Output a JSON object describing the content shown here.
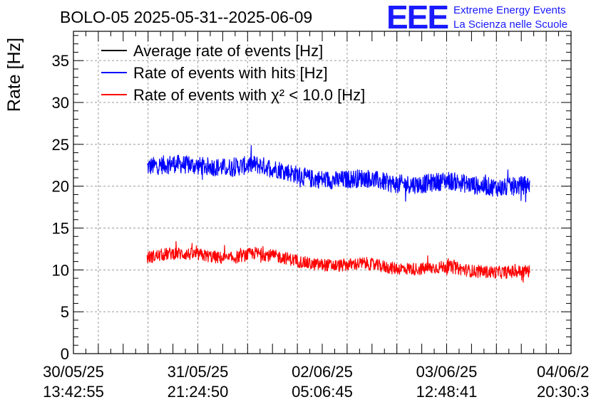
{
  "title": "BOLO-05 2025-05-31--2025-06-09",
  "logo": {
    "mark": "EEE",
    "line1": "Extreme Energy Events",
    "line2": "La Scienza nelle Scuole",
    "color": "#1a1aff"
  },
  "chart_data": {
    "type": "line",
    "ylabel": "Rate [Hz]",
    "ylim": [
      0,
      38.5
    ],
    "yticks": [
      0,
      5,
      10,
      15,
      20,
      25,
      30,
      35
    ],
    "xticks": [
      {
        "date": "30/05/25",
        "time": "13:42:55"
      },
      {
        "date": "31/05/25",
        "time": "21:24:50"
      },
      {
        "date": "02/06/25",
        "time": "05:06:45"
      },
      {
        "date": "03/06/25",
        "time": "12:48:41"
      },
      {
        "date": "04/06/2",
        "time": "20:30:3"
      }
    ],
    "grid": true,
    "legend_position": "top-left",
    "series": [
      {
        "name": "Average rate of events [Hz]",
        "color": "#000000",
        "values": []
      },
      {
        "name": "Rate of events with hits [Hz]",
        "color": "#0000ff",
        "x": [
          "2025-05-31T08:30",
          "2025-05-31T15:00",
          "2025-05-31T22:00",
          "2025-06-01T05:00",
          "2025-06-01T12:00",
          "2025-06-01T19:00",
          "2025-06-02T02:00",
          "2025-06-02T09:00",
          "2025-06-02T16:00",
          "2025-06-02T23:00",
          "2025-06-03T06:00",
          "2025-06-03T13:00",
          "2025-06-03T20:00",
          "2025-06-04T03:00",
          "2025-06-04T10:00"
        ],
        "values": [
          22.3,
          22.7,
          22.4,
          22.2,
          22.6,
          21.9,
          20.9,
          20.7,
          21.0,
          20.3,
          20.2,
          20.7,
          20.1,
          19.8,
          20.2
        ]
      },
      {
        "name": "Rate of events with χ² < 10.0 [Hz]",
        "color": "#ff0000",
        "x": [
          "2025-05-31T08:30",
          "2025-05-31T15:00",
          "2025-05-31T22:00",
          "2025-06-01T05:00",
          "2025-06-01T12:00",
          "2025-06-01T19:00",
          "2025-06-02T02:00",
          "2025-06-02T09:00",
          "2025-06-02T16:00",
          "2025-06-02T23:00",
          "2025-06-03T06:00",
          "2025-06-03T13:00",
          "2025-06-03T20:00",
          "2025-06-04T03:00",
          "2025-06-04T10:00"
        ],
        "values": [
          11.5,
          12.0,
          11.8,
          11.3,
          12.0,
          11.5,
          10.7,
          10.5,
          10.8,
          10.2,
          10.1,
          10.4,
          9.8,
          9.7,
          9.9
        ]
      }
    ]
  }
}
